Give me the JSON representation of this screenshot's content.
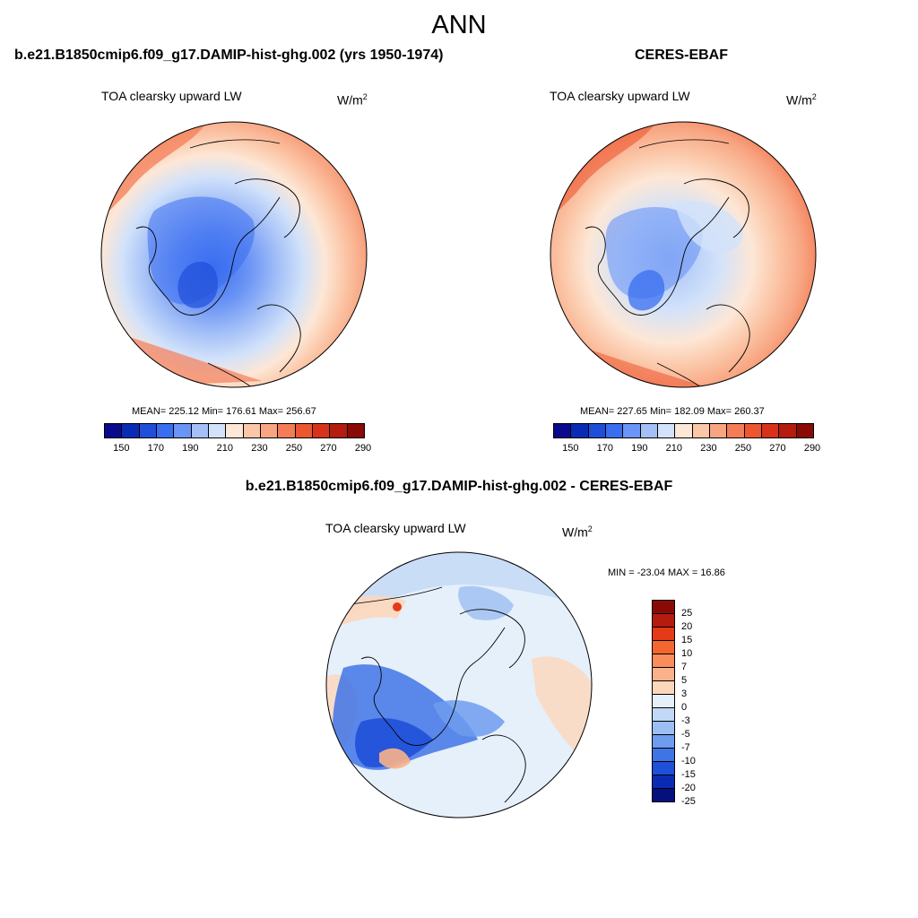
{
  "figure": {
    "title": "ANN",
    "left_panel": {
      "case_title": "b.e21.B1850cmip6.f09_g17.DAMIP-hist-ghg.002 (yrs 1950-1974)",
      "variable": "TOA clearsky upward LW",
      "units": "W/m",
      "units_exp": "2",
      "stats": "MEAN= 225.12  Min= 176.61  Max= 256.67"
    },
    "right_panel": {
      "case_title": "CERES-EBAF",
      "variable": "TOA clearsky upward LW",
      "units": "W/m",
      "units_exp": "2",
      "stats": "MEAN= 227.65  Min= 182.09  Max= 260.37"
    },
    "diff_panel": {
      "case_title": "b.e21.B1850cmip6.f09_g17.DAMIP-hist-ghg.002 - CERES-EBAF",
      "variable": "TOA clearsky upward LW",
      "units": "W/m",
      "units_exp": "2",
      "stats": "MIN = -23.04 MAX =  16.86"
    }
  },
  "chart_data": {
    "type": "heatmap",
    "projection": "north polar stereographic",
    "absolute_colorbar": {
      "colors": [
        "#0a0a8c",
        "#0a2cb4",
        "#1f4ed8",
        "#3a6ef0",
        "#6a94f5",
        "#a4c0f7",
        "#d2e2fa",
        "#fde7d6",
        "#fbc7a8",
        "#f8a582",
        "#f47d58",
        "#ec5630",
        "#d8331a",
        "#b41c0f",
        "#8a0a05"
      ],
      "tick_labels": [
        "150",
        "170",
        "190",
        "210",
        "230",
        "250",
        "270",
        "290"
      ]
    },
    "difference_colorbar": {
      "colors": [
        "#8a0a05",
        "#b41c0f",
        "#e53a17",
        "#f5652e",
        "#f98e5c",
        "#fbb28a",
        "#fdd7bc",
        "#e6f0fa",
        "#c3d8f6",
        "#9cbef2",
        "#6f9cee",
        "#3f74e6",
        "#1f50d8",
        "#0a2cb4",
        "#05107e"
      ],
      "tick_labels": [
        "25",
        "20",
        "15",
        "10",
        "7",
        "5",
        "3",
        "0",
        "-3",
        "-5",
        "-7",
        "-10",
        "-15",
        "-20",
        "-25"
      ]
    }
  }
}
